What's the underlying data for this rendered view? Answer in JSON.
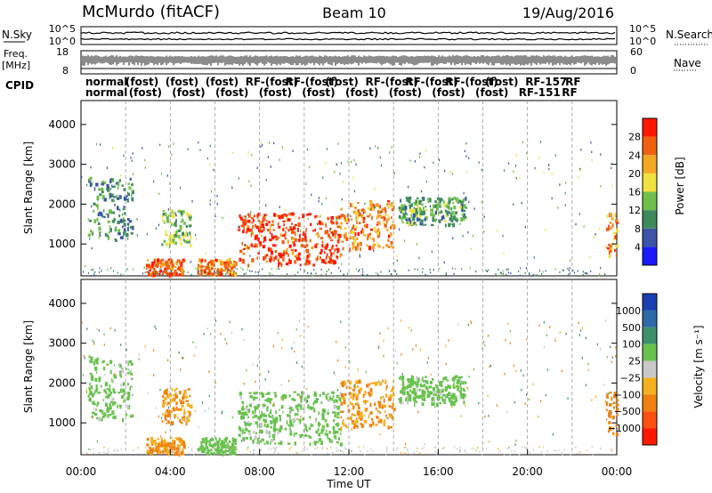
{
  "header": {
    "station": "McMurdo (fitACF)",
    "beam": "Beam 10",
    "date": "19/Aug/2016"
  },
  "noise_panel": {
    "left_label": "N.Sky",
    "right_label": "N.Search",
    "left_ticks": [
      "10^5",
      "10^0"
    ],
    "right_ticks": [
      "10^5",
      "10^0"
    ]
  },
  "freq_panel": {
    "left_label_line1": "Freq.",
    "left_label_line2": "[MHz]",
    "right_label": "Nave",
    "left_ticks": [
      "18",
      "8"
    ],
    "right_ticks": [
      "60",
      "0"
    ]
  },
  "cpid": {
    "label": "CPID",
    "row1": [
      "normal",
      "(fost)",
      "(fost)",
      "(fost)",
      "RF-(fost)",
      "RF-(fost)",
      "(fost)",
      "RF-(fost)",
      "RF-(fost)",
      "RF-(fost)",
      "(fost)",
      "RF-157",
      "RF"
    ],
    "row2": [
      "normal",
      "(fost)",
      "(fost)",
      "(fost)",
      "(fost)",
      "(fost)",
      "(fost)",
      "(fost)",
      "(fost)",
      "(fost)",
      "RF-151",
      "RF"
    ]
  },
  "colors": {
    "power_scale": [
      "#1a1aff",
      "#3c55a8",
      "#3e8a5c",
      "#6fc04a",
      "#f0e040",
      "#f5a623",
      "#f06010",
      "#ff1a00"
    ],
    "velocity_scale": [
      "#1a3fb0",
      "#2e6aa8",
      "#3e8f6a",
      "#68c24e",
      "#c8c8c8",
      "#f5b020",
      "#f08010",
      "#ff5010",
      "#ff1a00"
    ]
  },
  "chart_data": [
    {
      "type": "heatmap",
      "panel": "power",
      "xlabel": "",
      "ylabel": "Slant Range [km]",
      "ylim": [
        200,
        4600
      ],
      "xlim_hours": [
        0,
        24
      ],
      "yticks": [
        "1000",
        "2000",
        "3000",
        "4000"
      ],
      "colorbar_label": "Power [dB]",
      "colorbar_ticks": [
        "4",
        "8",
        "12",
        "16",
        "20",
        "24",
        "28"
      ],
      "grid": "dashed vertical every 2 hours",
      "regions": [
        {
          "t0": 0.3,
          "t1": 2.3,
          "r0": 1100,
          "r1": 2700,
          "level": 10
        },
        {
          "t0": 2.9,
          "t1": 4.6,
          "r0": 250,
          "r1": 650,
          "level": 26
        },
        {
          "t0": 3.6,
          "t1": 4.9,
          "r0": 1000,
          "r1": 1900,
          "level": 14
        },
        {
          "t0": 5.2,
          "t1": 6.9,
          "r0": 250,
          "r1": 650,
          "level": 24
        },
        {
          "t0": 7.0,
          "t1": 11.6,
          "r0": 500,
          "r1": 1800,
          "level": 28
        },
        {
          "t0": 11.6,
          "t1": 14.0,
          "r0": 900,
          "r1": 2100,
          "level": 24
        },
        {
          "t0": 14.2,
          "t1": 17.2,
          "r0": 1500,
          "r1": 2200,
          "level": 12
        },
        {
          "t0": 23.5,
          "t1": 24.0,
          "r0": 700,
          "r1": 1800,
          "level": 24
        }
      ]
    },
    {
      "type": "heatmap",
      "panel": "velocity",
      "xlabel": "Time UT",
      "ylabel": "Slant Range [km]",
      "ylim": [
        200,
        4600
      ],
      "xlim_hours": [
        0,
        24
      ],
      "yticks": [
        "1000",
        "2000",
        "3000",
        "4000"
      ],
      "xticks": [
        "00:00",
        "04:00",
        "08:00",
        "12:00",
        "16:00",
        "20:00",
        "00:00"
      ],
      "colorbar_label": "Velocity [m s⁻¹]",
      "colorbar_ticks": [
        "1000",
        "500",
        "100",
        "25",
        "−25",
        "−100",
        "−500",
        "−1000"
      ],
      "grid": "dashed vertical every 2 hours",
      "regions": [
        {
          "t0": 0.3,
          "t1": 2.3,
          "r0": 1100,
          "r1": 2700,
          "level": 60
        },
        {
          "t0": 2.9,
          "t1": 4.6,
          "r0": 250,
          "r1": 650,
          "level": -100
        },
        {
          "t0": 3.6,
          "t1": 4.9,
          "r0": 1000,
          "r1": 1900,
          "level": -100
        },
        {
          "t0": 5.2,
          "t1": 6.9,
          "r0": 250,
          "r1": 650,
          "level": 60
        },
        {
          "t0": 7.0,
          "t1": 11.6,
          "r0": 500,
          "r1": 1800,
          "level": 60
        },
        {
          "t0": 11.6,
          "t1": 14.0,
          "r0": 900,
          "r1": 2100,
          "level": -100
        },
        {
          "t0": 14.2,
          "t1": 17.2,
          "r0": 1500,
          "r1": 2200,
          "level": 60
        },
        {
          "t0": 23.5,
          "t1": 24.0,
          "r0": 700,
          "r1": 1800,
          "level": -300
        }
      ]
    }
  ]
}
